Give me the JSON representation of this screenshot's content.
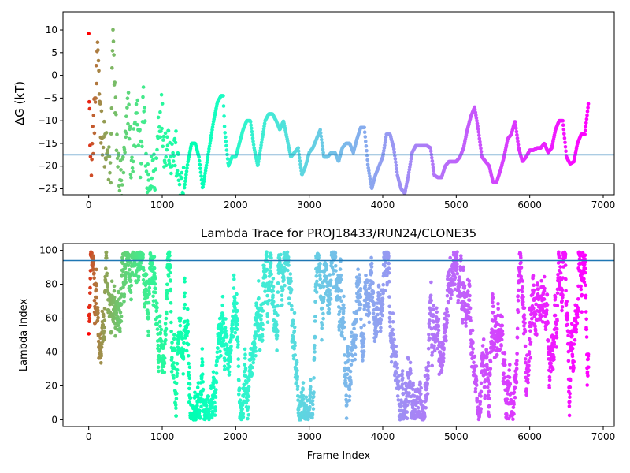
{
  "chart_data": [
    {
      "type": "scatter",
      "title": "",
      "xlabel": "",
      "ylabel": "ΔG (kT)",
      "xlim": [
        -350,
        7150
      ],
      "ylim": [
        -26.3,
        14
      ],
      "xticks": [
        0,
        1000,
        2000,
        3000,
        4000,
        5000,
        6000,
        7000
      ],
      "yticks": [
        -25,
        -20,
        -15,
        -10,
        -5,
        0,
        5,
        10
      ],
      "hline": -17.5,
      "hline_color": "#1f77b4",
      "colormap": "rainbow (reversed over frame index)",
      "grid": false,
      "legend": "none",
      "trace": [
        [
          0,
          14
        ],
        [
          5,
          0
        ],
        [
          10,
          -5
        ],
        [
          15,
          -12
        ],
        [
          20,
          -20
        ],
        [
          30,
          -25
        ],
        [
          50,
          -15
        ],
        [
          80,
          -8
        ],
        [
          100,
          -3
        ],
        [
          130,
          5
        ],
        [
          160,
          -10
        ],
        [
          200,
          -14
        ],
        [
          250,
          -18
        ],
        [
          300,
          -22
        ],
        [
          330,
          13
        ],
        [
          350,
          -4
        ],
        [
          400,
          -20
        ],
        [
          450,
          -24
        ],
        [
          500,
          -16
        ],
        [
          540,
          -5
        ],
        [
          580,
          -22
        ],
        [
          620,
          -14
        ],
        [
          660,
          -8
        ],
        [
          700,
          -18
        ],
        [
          750,
          -6
        ],
        [
          790,
          -24
        ],
        [
          830,
          -25
        ],
        [
          870,
          -20
        ],
        [
          910,
          -22
        ],
        [
          950,
          -10
        ],
        [
          990,
          -8
        ],
        [
          1030,
          -16
        ],
        [
          1080,
          -14
        ],
        [
          1130,
          -18
        ],
        [
          1180,
          -16
        ],
        [
          1220,
          -22
        ],
        [
          1260,
          -25
        ],
        [
          1300,
          -25
        ],
        [
          1350,
          -19
        ],
        [
          1400,
          -15
        ],
        [
          1450,
          -15
        ],
        [
          1500,
          -18
        ],
        [
          1550,
          -25
        ],
        [
          1600,
          -20
        ],
        [
          1650,
          -15
        ],
        [
          1700,
          -10
        ],
        [
          1750,
          -6
        ],
        [
          1800,
          -4.5
        ],
        [
          1830,
          -4.5
        ],
        [
          1850,
          -12
        ],
        [
          1900,
          -20
        ],
        [
          1950,
          -18
        ],
        [
          2000,
          -18
        ],
        [
          2050,
          -15
        ],
        [
          2100,
          -12
        ],
        [
          2150,
          -10
        ],
        [
          2200,
          -10
        ],
        [
          2250,
          -16
        ],
        [
          2300,
          -20
        ],
        [
          2350,
          -15
        ],
        [
          2400,
          -10
        ],
        [
          2450,
          -8.5
        ],
        [
          2500,
          -8.5
        ],
        [
          2550,
          -10
        ],
        [
          2600,
          -12
        ],
        [
          2650,
          -10
        ],
        [
          2700,
          -14
        ],
        [
          2750,
          -18
        ],
        [
          2800,
          -17
        ],
        [
          2850,
          -16
        ],
        [
          2900,
          -22
        ],
        [
          2950,
          -20
        ],
        [
          3000,
          -17
        ],
        [
          3050,
          -16
        ],
        [
          3100,
          -14
        ],
        [
          3150,
          -12
        ],
        [
          3200,
          -18
        ],
        [
          3250,
          -18
        ],
        [
          3300,
          -17
        ],
        [
          3350,
          -17
        ],
        [
          3400,
          -19
        ],
        [
          3450,
          -16
        ],
        [
          3500,
          -15
        ],
        [
          3550,
          -15
        ],
        [
          3600,
          -17
        ],
        [
          3650,
          -14
        ],
        [
          3700,
          -11.5
        ],
        [
          3750,
          -11.5
        ],
        [
          3800,
          -20
        ],
        [
          3850,
          -25
        ],
        [
          3900,
          -22
        ],
        [
          3950,
          -20
        ],
        [
          4000,
          -18
        ],
        [
          4050,
          -13
        ],
        [
          4100,
          -13
        ],
        [
          4150,
          -16
        ],
        [
          4200,
          -22
        ],
        [
          4250,
          -25
        ],
        [
          4300,
          -26
        ],
        [
          4350,
          -22
        ],
        [
          4400,
          -17
        ],
        [
          4450,
          -15.5
        ],
        [
          4500,
          -15.5
        ],
        [
          4550,
          -15.5
        ],
        [
          4600,
          -15.5
        ],
        [
          4650,
          -16
        ],
        [
          4700,
          -22
        ],
        [
          4750,
          -22.5
        ],
        [
          4800,
          -22.5
        ],
        [
          4850,
          -20
        ],
        [
          4900,
          -19
        ],
        [
          4950,
          -19
        ],
        [
          5000,
          -19
        ],
        [
          5050,
          -18
        ],
        [
          5100,
          -16
        ],
        [
          5150,
          -12
        ],
        [
          5200,
          -9
        ],
        [
          5250,
          -7
        ],
        [
          5300,
          -12
        ],
        [
          5350,
          -18
        ],
        [
          5400,
          -19
        ],
        [
          5450,
          -20
        ],
        [
          5500,
          -23.5
        ],
        [
          5550,
          -23.5
        ],
        [
          5600,
          -21
        ],
        [
          5650,
          -18
        ],
        [
          5700,
          -14
        ],
        [
          5750,
          -13
        ],
        [
          5800,
          -10
        ],
        [
          5850,
          -16
        ],
        [
          5900,
          -19
        ],
        [
          5950,
          -18
        ],
        [
          6000,
          -16.5
        ],
        [
          6050,
          -16.5
        ],
        [
          6100,
          -16
        ],
        [
          6150,
          -16
        ],
        [
          6200,
          -15
        ],
        [
          6250,
          -17
        ],
        [
          6300,
          -16
        ],
        [
          6350,
          -12
        ],
        [
          6400,
          -10
        ],
        [
          6450,
          -10
        ],
        [
          6500,
          -18
        ],
        [
          6550,
          -19.5
        ],
        [
          6600,
          -19
        ],
        [
          6650,
          -15
        ],
        [
          6700,
          -13
        ],
        [
          6750,
          -13
        ],
        [
          6800,
          -6
        ]
      ]
    },
    {
      "type": "scatter",
      "title": "Lambda Trace for PROJ18433/RUN24/CLONE35",
      "xlabel": "Frame Index",
      "ylabel": "Lambda Index",
      "xlim": [
        -350,
        7150
      ],
      "ylim": [
        -4,
        104
      ],
      "xticks": [
        0,
        1000,
        2000,
        3000,
        4000,
        5000,
        6000,
        7000
      ],
      "yticks": [
        0,
        20,
        40,
        60,
        80,
        100
      ],
      "hline": 94,
      "hline_color": "#1f77b4",
      "colormap": "rainbow (reversed over frame index)",
      "grid": false,
      "legend": "none",
      "frame_count": 6800,
      "lambda_range": [
        0,
        99
      ]
    }
  ]
}
